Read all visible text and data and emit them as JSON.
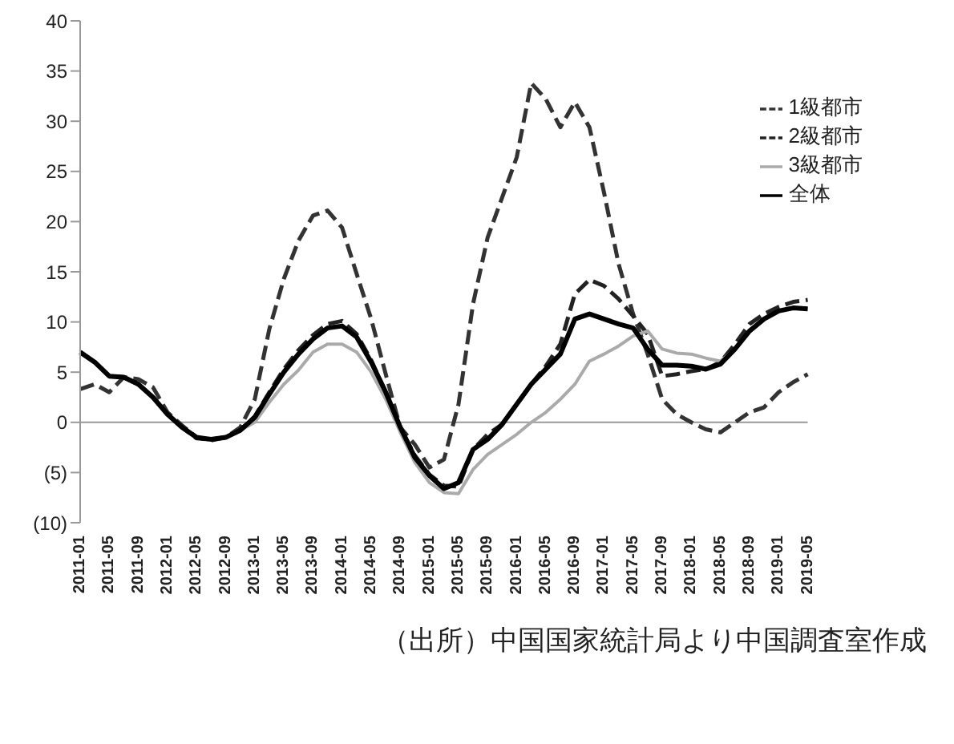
{
  "chart_data": {
    "type": "line",
    "categories": [
      "2011-01",
      null,
      "2011-05",
      null,
      "2011-09",
      null,
      "2012-01",
      null,
      "2012-05",
      null,
      "2012-09",
      null,
      "2013-01",
      null,
      "2013-05",
      null,
      "2013-09",
      null,
      "2014-01",
      null,
      "2014-05",
      null,
      "2014-09",
      null,
      "2015-01",
      null,
      "2015-05",
      null,
      "2015-09",
      null,
      "2016-01",
      null,
      "2016-05",
      null,
      "2016-09",
      null,
      "2017-01",
      null,
      "2017-05",
      null,
      "2017-09",
      null,
      "2018-01",
      null,
      "2018-05",
      null,
      "2018-09",
      null,
      "2019-01",
      null,
      "2019-05"
    ],
    "series": [
      {
        "name": "1級都市",
        "color": "#333333",
        "line_style": "dashed",
        "values": [
          3.3,
          3.8,
          3.0,
          4.5,
          4.3,
          3.5,
          1.0,
          -0.3,
          -1.5,
          -1.8,
          -1.5,
          -0.5,
          2.3,
          9.3,
          14.3,
          18.1,
          20.6,
          21.1,
          19.4,
          14.8,
          10.3,
          4.8,
          -0.5,
          -2.2,
          -4.5,
          -3.7,
          1.8,
          11.8,
          18.4,
          22.4,
          26.4,
          33.8,
          32.2,
          29.4,
          31.9,
          29.4,
          22.9,
          15.8,
          10.8,
          6.8,
          2.3,
          0.8,
          0,
          -0.7,
          -1.0,
          0,
          1.0,
          1.5,
          3.0,
          4.0,
          4.8
        ]
      },
      {
        "name": "2級都市",
        "color": "#222222",
        "line_style": "dashed",
        "values": [
          7.0,
          6.0,
          4.6,
          4.5,
          3.8,
          2.5,
          0.8,
          -0.5,
          -1.6,
          -1.7,
          -1.5,
          -0.8,
          0.6,
          3.0,
          5.3,
          7.2,
          8.7,
          9.8,
          10.1,
          8.8,
          6.2,
          3.0,
          -0.5,
          -3.3,
          -5.2,
          -6.3,
          -6.4,
          -2.7,
          -1.2,
          -0.2,
          1.8,
          3.8,
          5.6,
          7.8,
          12.8,
          14.2,
          13.6,
          12.3,
          10.6,
          8.8,
          4.6,
          4.8,
          5.1,
          5.3,
          6.0,
          7.8,
          9.8,
          10.8,
          11.5,
          12.0,
          12.2
        ]
      },
      {
        "name": "3級都市",
        "color": "#aaaaaa",
        "line_style": "solid",
        "values": [
          7.0,
          6.0,
          4.6,
          4.5,
          3.8,
          2.5,
          0.8,
          -0.5,
          -1.5,
          -1.7,
          -1.5,
          -0.8,
          0,
          2.0,
          3.8,
          5.2,
          7.0,
          7.8,
          7.8,
          7.0,
          5.0,
          2.3,
          -1.0,
          -4.0,
          -6.0,
          -7.0,
          -7.1,
          -4.7,
          -3.2,
          -2.2,
          -1.2,
          0,
          1.0,
          2.3,
          3.8,
          6.1,
          6.8,
          7.6,
          8.6,
          9.1,
          7.3,
          6.9,
          6.8,
          6.4,
          6.1,
          7.3,
          9.1,
          10.3,
          11.1,
          11.4,
          11.3
        ]
      },
      {
        "name": "全体",
        "color": "#000000",
        "line_style": "solid",
        "values": [
          7.0,
          6.0,
          4.6,
          4.5,
          3.8,
          2.5,
          0.8,
          -0.5,
          -1.5,
          -1.7,
          -1.5,
          -0.8,
          0.5,
          2.8,
          5.0,
          6.8,
          8.3,
          9.4,
          9.6,
          8.5,
          6.0,
          3.0,
          -0.5,
          -3.5,
          -5.3,
          -6.6,
          -6.0,
          -2.7,
          -1.7,
          -0.2,
          1.8,
          3.8,
          5.3,
          6.8,
          10.3,
          10.8,
          10.3,
          9.8,
          9.4,
          7.3,
          5.7,
          5.7,
          5.6,
          5.3,
          5.8,
          7.3,
          9.1,
          10.3,
          11.1,
          11.4,
          11.3
        ]
      }
    ],
    "ylim": [
      -10,
      40
    ],
    "yticks": [
      {
        "value": -10,
        "label": "(10)"
      },
      {
        "value": -5,
        "label": "(5)"
      },
      0,
      5,
      10,
      15,
      20,
      25,
      30,
      35,
      40
    ],
    "ref_lines": [
      {
        "axis": "y",
        "value": 0,
        "color": "#999999"
      }
    ],
    "grid": false,
    "legend": "top right",
    "annotations": [
      "（出所）中国国家統計局より中国調査室作成"
    ]
  }
}
